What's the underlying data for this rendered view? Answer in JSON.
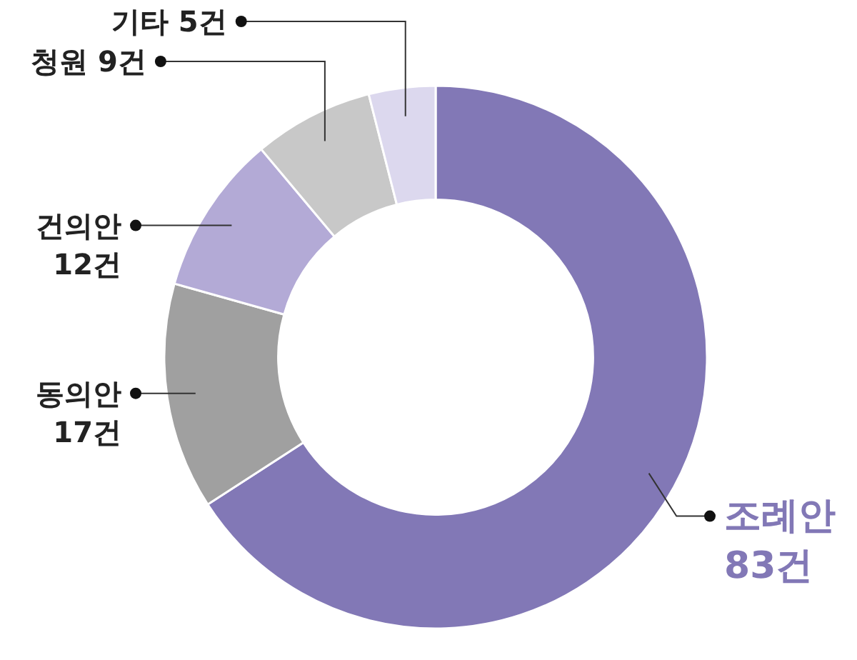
{
  "chart_data": {
    "type": "donut",
    "categories": [
      "조례안",
      "동의안",
      "건의안",
      "청원",
      "기타"
    ],
    "values": [
      83,
      17,
      12,
      9,
      5
    ],
    "value_labels": [
      "83건",
      "17건",
      "12건",
      "9건",
      "5건"
    ],
    "colors": [
      "#8278b6",
      "#a0a0a0",
      "#b3aad6",
      "#c8c8c8",
      "#dcd8ee"
    ]
  }
}
